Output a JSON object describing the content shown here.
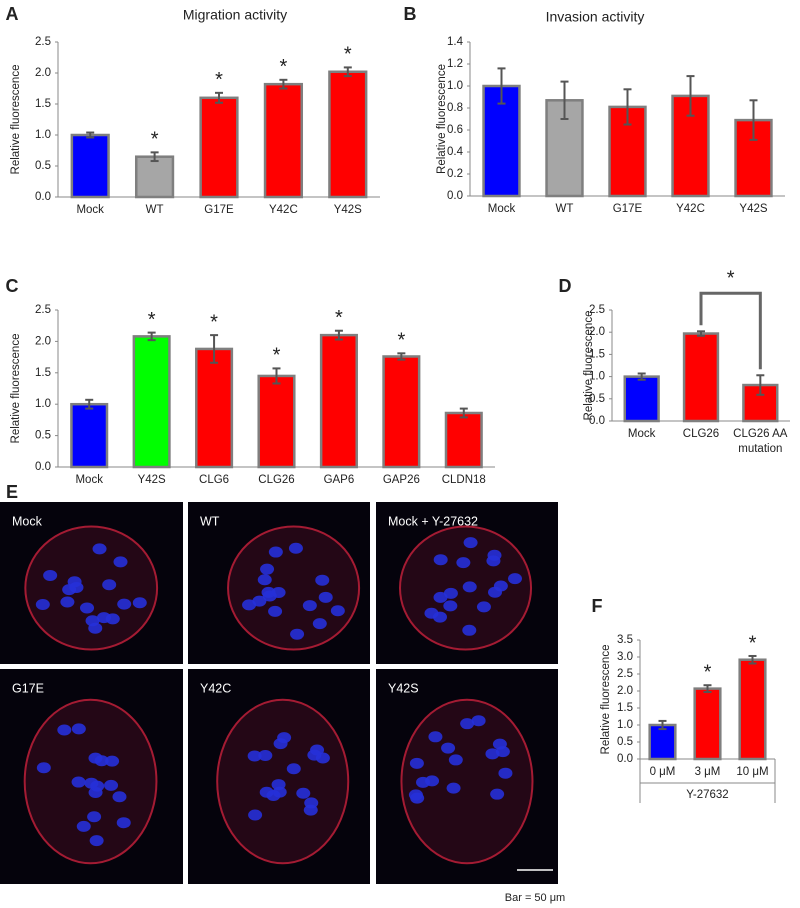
{
  "chart_data": [
    {
      "type": "bar",
      "panel_label": "A",
      "title": "Migration activity",
      "ylabel": "Relative fluorescence",
      "categories": [
        "Mock",
        "WT",
        "G17E",
        "Y42C",
        "Y42S"
      ],
      "values": [
        1.0,
        0.65,
        1.6,
        1.82,
        2.02
      ],
      "errors": [
        0.04,
        0.07,
        0.08,
        0.07,
        0.07
      ],
      "colors": [
        "#0000ff",
        "#a6a6a6",
        "#ff0000",
        "#ff0000",
        "#ff0000"
      ],
      "significance": [
        null,
        "*",
        "*",
        "*",
        "*"
      ],
      "ylim": [
        0,
        2.5
      ],
      "yticks": [
        {
          "value": 0,
          "label": "0.0"
        },
        {
          "value": 0.5,
          "label": "0.5"
        },
        {
          "value": 1,
          "label": "1.0"
        },
        {
          "value": 1.5,
          "label": "1.5"
        },
        {
          "value": 2,
          "label": "2.0"
        },
        {
          "value": 2.5,
          "label": "2.5"
        }
      ]
    },
    {
      "type": "bar",
      "panel_label": "B",
      "title": "Invasion activity",
      "ylabel": "Relative fluorescence",
      "categories": [
        "Mock",
        "WT",
        "G17E",
        "Y42C",
        "Y42S"
      ],
      "values": [
        1.0,
        0.87,
        0.81,
        0.91,
        0.69
      ],
      "errors": [
        0.16,
        0.17,
        0.16,
        0.18,
        0.18
      ],
      "colors": [
        "#0000ff",
        "#a6a6a6",
        "#ff0000",
        "#ff0000",
        "#ff0000"
      ],
      "ylim": [
        0,
        1.4
      ],
      "yticks": [
        {
          "value": 0,
          "label": "0.0"
        },
        {
          "value": 0.2,
          "label": "0.2"
        },
        {
          "value": 0.4,
          "label": "0.4"
        },
        {
          "value": 0.6,
          "label": "0.6"
        },
        {
          "value": 0.8,
          "label": "0.8"
        },
        {
          "value": 1,
          "label": "1.0"
        },
        {
          "value": 1.2,
          "label": "1.2"
        },
        {
          "value": 1.4,
          "label": "1.4"
        }
      ]
    },
    {
      "type": "bar",
      "panel_label": "C",
      "ylabel": "Relative fluorescence",
      "categories": [
        "Mock",
        "Y42S",
        "CLG6",
        "CLG26",
        "GAP6",
        "GAP26",
        "CLDN18"
      ],
      "values": [
        1.0,
        2.08,
        1.88,
        1.45,
        2.1,
        1.76,
        0.86
      ],
      "errors": [
        0.07,
        0.06,
        0.22,
        0.12,
        0.07,
        0.05,
        0.07
      ],
      "colors": [
        "#0000ff",
        "#00ff00",
        "#ff0000",
        "#ff0000",
        "#ff0000",
        "#ff0000",
        "#ff0000"
      ],
      "significance": [
        null,
        "*",
        "*",
        "*",
        "*",
        "*",
        null
      ],
      "ylim": [
        0,
        2.5
      ],
      "yticks": [
        {
          "value": 0,
          "label": "0.0"
        },
        {
          "value": 0.5,
          "label": "0.5"
        },
        {
          "value": 1,
          "label": "1.0"
        },
        {
          "value": 1.5,
          "label": "1.5"
        },
        {
          "value": 2,
          "label": "2.0"
        },
        {
          "value": 2.5,
          "label": "2.5"
        }
      ]
    },
    {
      "type": "bar",
      "panel_label": "D",
      "ylabel": "Relative fluorescence",
      "categories": [
        "Mock",
        "CLG26",
        "CLG26 AA mutation"
      ],
      "values": [
        1.0,
        1.97,
        0.81
      ],
      "errors": [
        0.07,
        0.05,
        0.22
      ],
      "colors": [
        "#0000ff",
        "#ff0000",
        "#ff0000"
      ],
      "significance_bracket": {
        "label": "*",
        "between": [
          1,
          2
        ]
      },
      "ylim": [
        0,
        2.5
      ],
      "yticks": [
        {
          "value": 0,
          "label": "0.0"
        },
        {
          "value": 0.5,
          "label": "0.5"
        },
        {
          "value": 1,
          "label": "1.0"
        },
        {
          "value": 1.5,
          "label": "1.5"
        },
        {
          "value": 2,
          "label": "2.0"
        },
        {
          "value": 2.5,
          "label": "2.5"
        }
      ]
    },
    {
      "type": "bar",
      "panel_label": "F",
      "ylabel": "Relative fluorescence",
      "xlabel": "Y-27632",
      "categories": [
        "0 μM",
        "3 μM",
        "10 μM"
      ],
      "values": [
        1.0,
        2.07,
        2.92
      ],
      "errors": [
        0.12,
        0.1,
        0.11
      ],
      "colors": [
        "#0000ff",
        "#ff0000",
        "#ff0000"
      ],
      "significance": [
        null,
        "*",
        "*"
      ],
      "ylim": [
        0,
        3.5
      ],
      "yticks": [
        {
          "value": 0,
          "label": "0.0"
        },
        {
          "value": 0.5,
          "label": "0.5"
        },
        {
          "value": 1,
          "label": "1.0"
        },
        {
          "value": 1.5,
          "label": "1.5"
        },
        {
          "value": 2,
          "label": "2.0"
        },
        {
          "value": 2.5,
          "label": "2.5"
        },
        {
          "value": 3,
          "label": "3.0"
        },
        {
          "value": 3.5,
          "label": "3.5"
        }
      ]
    }
  ],
  "panel_e": {
    "panel_label": "E",
    "images": [
      "Mock",
      "WT",
      "Mock + Y-27632",
      "G17E",
      "Y42C",
      "Y42S"
    ],
    "scale_bar": "Bar = 50 μm"
  }
}
